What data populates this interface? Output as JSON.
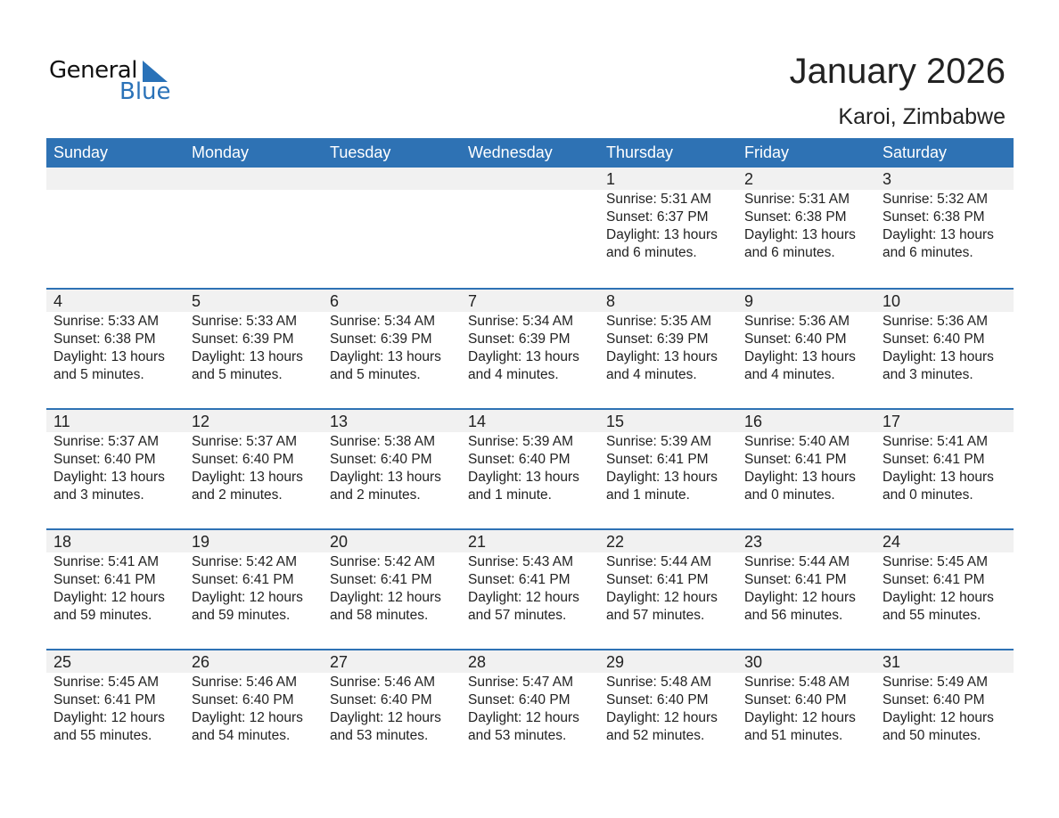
{
  "logo": {
    "general": "General",
    "blue": "Blue"
  },
  "title": "January 2026",
  "location": "Karoi, Zimbabwe",
  "colors": {
    "header": "#2e72b4",
    "brand_blue": "#2a72b8",
    "date_row": "#f1f1f1"
  },
  "weekdays": [
    "Sunday",
    "Monday",
    "Tuesday",
    "Wednesday",
    "Thursday",
    "Friday",
    "Saturday"
  ],
  "weeks": [
    {
      "days": [
        null,
        null,
        null,
        null,
        {
          "date": "1",
          "sunrise": "Sunrise: 5:31 AM",
          "sunset": "Sunset: 6:37 PM",
          "daylight1": "Daylight: 13 hours",
          "daylight2": "and 6 minutes."
        },
        {
          "date": "2",
          "sunrise": "Sunrise: 5:31 AM",
          "sunset": "Sunset: 6:38 PM",
          "daylight1": "Daylight: 13 hours",
          "daylight2": "and 6 minutes."
        },
        {
          "date": "3",
          "sunrise": "Sunrise: 5:32 AM",
          "sunset": "Sunset: 6:38 PM",
          "daylight1": "Daylight: 13 hours",
          "daylight2": "and 6 minutes."
        }
      ]
    },
    {
      "days": [
        {
          "date": "4",
          "sunrise": "Sunrise: 5:33 AM",
          "sunset": "Sunset: 6:38 PM",
          "daylight1": "Daylight: 13 hours",
          "daylight2": "and 5 minutes."
        },
        {
          "date": "5",
          "sunrise": "Sunrise: 5:33 AM",
          "sunset": "Sunset: 6:39 PM",
          "daylight1": "Daylight: 13 hours",
          "daylight2": "and 5 minutes."
        },
        {
          "date": "6",
          "sunrise": "Sunrise: 5:34 AM",
          "sunset": "Sunset: 6:39 PM",
          "daylight1": "Daylight: 13 hours",
          "daylight2": "and 5 minutes."
        },
        {
          "date": "7",
          "sunrise": "Sunrise: 5:34 AM",
          "sunset": "Sunset: 6:39 PM",
          "daylight1": "Daylight: 13 hours",
          "daylight2": "and 4 minutes."
        },
        {
          "date": "8",
          "sunrise": "Sunrise: 5:35 AM",
          "sunset": "Sunset: 6:39 PM",
          "daylight1": "Daylight: 13 hours",
          "daylight2": "and 4 minutes."
        },
        {
          "date": "9",
          "sunrise": "Sunrise: 5:36 AM",
          "sunset": "Sunset: 6:40 PM",
          "daylight1": "Daylight: 13 hours",
          "daylight2": "and 4 minutes."
        },
        {
          "date": "10",
          "sunrise": "Sunrise: 5:36 AM",
          "sunset": "Sunset: 6:40 PM",
          "daylight1": "Daylight: 13 hours",
          "daylight2": "and 3 minutes."
        }
      ]
    },
    {
      "days": [
        {
          "date": "11",
          "sunrise": "Sunrise: 5:37 AM",
          "sunset": "Sunset: 6:40 PM",
          "daylight1": "Daylight: 13 hours",
          "daylight2": "and 3 minutes."
        },
        {
          "date": "12",
          "sunrise": "Sunrise: 5:37 AM",
          "sunset": "Sunset: 6:40 PM",
          "daylight1": "Daylight: 13 hours",
          "daylight2": "and 2 minutes."
        },
        {
          "date": "13",
          "sunrise": "Sunrise: 5:38 AM",
          "sunset": "Sunset: 6:40 PM",
          "daylight1": "Daylight: 13 hours",
          "daylight2": "and 2 minutes."
        },
        {
          "date": "14",
          "sunrise": "Sunrise: 5:39 AM",
          "sunset": "Sunset: 6:40 PM",
          "daylight1": "Daylight: 13 hours",
          "daylight2": "and 1 minute."
        },
        {
          "date": "15",
          "sunrise": "Sunrise: 5:39 AM",
          "sunset": "Sunset: 6:41 PM",
          "daylight1": "Daylight: 13 hours",
          "daylight2": "and 1 minute."
        },
        {
          "date": "16",
          "sunrise": "Sunrise: 5:40 AM",
          "sunset": "Sunset: 6:41 PM",
          "daylight1": "Daylight: 13 hours",
          "daylight2": "and 0 minutes."
        },
        {
          "date": "17",
          "sunrise": "Sunrise: 5:41 AM",
          "sunset": "Sunset: 6:41 PM",
          "daylight1": "Daylight: 13 hours",
          "daylight2": "and 0 minutes."
        }
      ]
    },
    {
      "days": [
        {
          "date": "18",
          "sunrise": "Sunrise: 5:41 AM",
          "sunset": "Sunset: 6:41 PM",
          "daylight1": "Daylight: 12 hours",
          "daylight2": "and 59 minutes."
        },
        {
          "date": "19",
          "sunrise": "Sunrise: 5:42 AM",
          "sunset": "Sunset: 6:41 PM",
          "daylight1": "Daylight: 12 hours",
          "daylight2": "and 59 minutes."
        },
        {
          "date": "20",
          "sunrise": "Sunrise: 5:42 AM",
          "sunset": "Sunset: 6:41 PM",
          "daylight1": "Daylight: 12 hours",
          "daylight2": "and 58 minutes."
        },
        {
          "date": "21",
          "sunrise": "Sunrise: 5:43 AM",
          "sunset": "Sunset: 6:41 PM",
          "daylight1": "Daylight: 12 hours",
          "daylight2": "and 57 minutes."
        },
        {
          "date": "22",
          "sunrise": "Sunrise: 5:44 AM",
          "sunset": "Sunset: 6:41 PM",
          "daylight1": "Daylight: 12 hours",
          "daylight2": "and 57 minutes."
        },
        {
          "date": "23",
          "sunrise": "Sunrise: 5:44 AM",
          "sunset": "Sunset: 6:41 PM",
          "daylight1": "Daylight: 12 hours",
          "daylight2": "and 56 minutes."
        },
        {
          "date": "24",
          "sunrise": "Sunrise: 5:45 AM",
          "sunset": "Sunset: 6:41 PM",
          "daylight1": "Daylight: 12 hours",
          "daylight2": "and 55 minutes."
        }
      ]
    },
    {
      "days": [
        {
          "date": "25",
          "sunrise": "Sunrise: 5:45 AM",
          "sunset": "Sunset: 6:41 PM",
          "daylight1": "Daylight: 12 hours",
          "daylight2": "and 55 minutes."
        },
        {
          "date": "26",
          "sunrise": "Sunrise: 5:46 AM",
          "sunset": "Sunset: 6:40 PM",
          "daylight1": "Daylight: 12 hours",
          "daylight2": "and 54 minutes."
        },
        {
          "date": "27",
          "sunrise": "Sunrise: 5:46 AM",
          "sunset": "Sunset: 6:40 PM",
          "daylight1": "Daylight: 12 hours",
          "daylight2": "and 53 minutes."
        },
        {
          "date": "28",
          "sunrise": "Sunrise: 5:47 AM",
          "sunset": "Sunset: 6:40 PM",
          "daylight1": "Daylight: 12 hours",
          "daylight2": "and 53 minutes."
        },
        {
          "date": "29",
          "sunrise": "Sunrise: 5:48 AM",
          "sunset": "Sunset: 6:40 PM",
          "daylight1": "Daylight: 12 hours",
          "daylight2": "and 52 minutes."
        },
        {
          "date": "30",
          "sunrise": "Sunrise: 5:48 AM",
          "sunset": "Sunset: 6:40 PM",
          "daylight1": "Daylight: 12 hours",
          "daylight2": "and 51 minutes."
        },
        {
          "date": "31",
          "sunrise": "Sunrise: 5:49 AM",
          "sunset": "Sunset: 6:40 PM",
          "daylight1": "Daylight: 12 hours",
          "daylight2": "and 50 minutes."
        }
      ]
    }
  ]
}
